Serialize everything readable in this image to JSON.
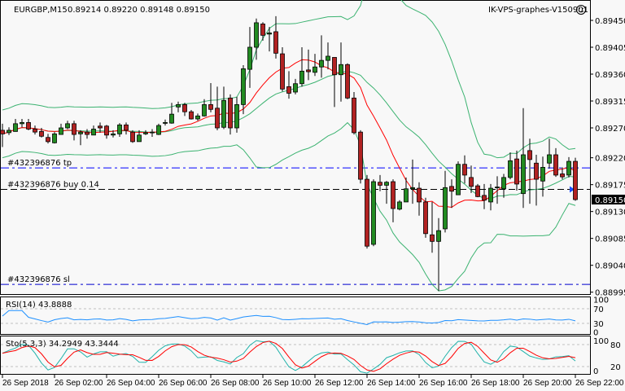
{
  "header": {
    "symbol": "EURGBP,M15",
    "ohlc": "0.89214 0.89220 0.89148 0.89150",
    "expert": "IK-VPS-graphes-V150901",
    "expert_icon": "smiley-face-icon"
  },
  "price_axis": {
    "labels": [
      "0.89450",
      "0.89405",
      "0.89360",
      "0.89315",
      "0.89270",
      "0.89220",
      "0.89175",
      "0.89130",
      "0.89085",
      "0.89040",
      "0.88995"
    ],
    "current_price": "0.89150"
  },
  "orders": {
    "tp": {
      "label": "#432396876 tp",
      "price": 0.89203
    },
    "buy": {
      "label": "#432396876 buy 0.14",
      "price": 0.89167
    },
    "sl": {
      "label": "#432396876 sl",
      "price": 0.89008
    }
  },
  "rsi": {
    "title": "RSI(14) 43.8888",
    "levels": [
      "100",
      "70",
      "30",
      "0"
    ]
  },
  "stoch": {
    "title": "Sto(5,3,3) 34.2949 43.3444",
    "levels": [
      "100",
      "80",
      "20",
      "0"
    ]
  },
  "time_axis": [
    "26 Sep 2018",
    "26 Sep 02:00",
    "26 Sep 04:00",
    "26 Sep 06:00",
    "26 Sep 08:00",
    "26 Sep 10:00",
    "26 Sep 12:00",
    "26 Sep 14:00",
    "26 Sep 16:00",
    "26 Sep 18:00",
    "26 Sep 20:00",
    "26 Sep 22:00"
  ],
  "colors": {
    "bull": "#228b22",
    "bear": "#b22222",
    "bands": "#3cb371",
    "ma": "#ff0000",
    "rsi": "#1e90ff",
    "stoch_main": "#20b2aa",
    "stoch_signal": "#ff0000",
    "tp_line": "#0000ff",
    "sl_line": "#0000cd",
    "buy_line": "#000000"
  },
  "chart_data": {
    "type": "candlestick",
    "symbol": "EURGBP",
    "timeframe": "M15",
    "ylim": [
      0.88995,
      0.8945
    ],
    "candles_ohlc": [
      [
        0.89266,
        0.89277,
        0.89238,
        0.8926
      ],
      [
        0.89262,
        0.89271,
        0.89258,
        0.89266
      ],
      [
        0.89264,
        0.89285,
        0.89264,
        0.89277
      ],
      [
        0.89277,
        0.89285,
        0.89271,
        0.89279
      ],
      [
        0.89279,
        0.89285,
        0.89266,
        0.89268
      ],
      [
        0.89268,
        0.89274,
        0.89259,
        0.89263
      ],
      [
        0.89264,
        0.8927,
        0.89254,
        0.89256
      ],
      [
        0.89254,
        0.8926,
        0.89244,
        0.89247
      ],
      [
        0.89245,
        0.89263,
        0.89244,
        0.8926
      ],
      [
        0.89259,
        0.89277,
        0.89259,
        0.8927
      ],
      [
        0.8927,
        0.89282,
        0.89268,
        0.89277
      ],
      [
        0.89277,
        0.89282,
        0.89249,
        0.89259
      ],
      [
        0.8926,
        0.89266,
        0.89241,
        0.89263
      ],
      [
        0.89263,
        0.89268,
        0.89252,
        0.89259
      ],
      [
        0.89258,
        0.89274,
        0.89258,
        0.89268
      ],
      [
        0.89273,
        0.89279,
        0.89262,
        0.8927
      ],
      [
        0.89273,
        0.89275,
        0.89252,
        0.89258
      ],
      [
        0.89258,
        0.89266,
        0.89254,
        0.8926
      ],
      [
        0.8926,
        0.89278,
        0.89255,
        0.89275
      ],
      [
        0.89275,
        0.89279,
        0.89259,
        0.89266
      ],
      [
        0.89263,
        0.89266,
        0.89245,
        0.89247
      ],
      [
        0.89247,
        0.89266,
        0.89247,
        0.89258
      ],
      [
        0.8926,
        0.89266,
        0.89258,
        0.89262
      ],
      [
        0.89262,
        0.89268,
        0.89255,
        0.89263
      ],
      [
        0.89259,
        0.89277,
        0.89258,
        0.89274
      ],
      [
        0.89278,
        0.89284,
        0.89274,
        0.89279
      ],
      [
        0.89278,
        0.89312,
        0.89277,
        0.89293
      ],
      [
        0.89305,
        0.89314,
        0.89296,
        0.89309
      ],
      [
        0.89309,
        0.89312,
        0.8929,
        0.89297
      ],
      [
        0.89297,
        0.893,
        0.89284,
        0.89285
      ],
      [
        0.89285,
        0.89294,
        0.89282,
        0.8929
      ],
      [
        0.8929,
        0.89318,
        0.89289,
        0.89309
      ],
      [
        0.89309,
        0.89345,
        0.89296,
        0.89301
      ],
      [
        0.89303,
        0.89339,
        0.89266,
        0.8927
      ],
      [
        0.89271,
        0.89339,
        0.89268,
        0.89316
      ],
      [
        0.8932,
        0.89326,
        0.89259,
        0.8927
      ],
      [
        0.8927,
        0.89322,
        0.89262,
        0.89309
      ],
      [
        0.89309,
        0.89375,
        0.89293,
        0.89369
      ],
      [
        0.89368,
        0.89439,
        0.89337,
        0.89405
      ],
      [
        0.89405,
        0.89453,
        0.89384,
        0.89446
      ],
      [
        0.89444,
        0.89447,
        0.89416,
        0.89425
      ],
      [
        0.89427,
        0.89439,
        0.89398,
        0.89429
      ],
      [
        0.89431,
        0.89457,
        0.89386,
        0.89395
      ],
      [
        0.89394,
        0.89405,
        0.89331,
        0.89335
      ],
      [
        0.89339,
        0.89365,
        0.89319,
        0.89328
      ],
      [
        0.8933,
        0.89352,
        0.89326,
        0.89344
      ],
      [
        0.89344,
        0.89405,
        0.89339,
        0.89365
      ],
      [
        0.89367,
        0.89401,
        0.8935,
        0.89364
      ],
      [
        0.89363,
        0.89394,
        0.89357,
        0.89372
      ],
      [
        0.89372,
        0.89425,
        0.89354,
        0.89383
      ],
      [
        0.89383,
        0.89413,
        0.89368,
        0.8939
      ],
      [
        0.89388,
        0.89388,
        0.89305,
        0.89359
      ],
      [
        0.89359,
        0.89413,
        0.89314,
        0.89376
      ],
      [
        0.89376,
        0.89378,
        0.89318,
        0.8932
      ],
      [
        0.8932,
        0.8933,
        0.89259,
        0.89262
      ],
      [
        0.89263,
        0.89266,
        0.89177,
        0.89184
      ],
      [
        0.89184,
        0.89191,
        0.89068,
        0.89072
      ],
      [
        0.89075,
        0.89184,
        0.89072,
        0.8918
      ],
      [
        0.89179,
        0.89191,
        0.89164,
        0.89174
      ],
      [
        0.89174,
        0.89181,
        0.89143,
        0.89179
      ],
      [
        0.8918,
        0.89184,
        0.89112,
        0.89135
      ],
      [
        0.89134,
        0.89149,
        0.89132,
        0.89146
      ],
      [
        0.89146,
        0.89187,
        0.89146,
        0.89168
      ],
      [
        0.89168,
        0.89217,
        0.89143,
        0.8917
      ],
      [
        0.89169,
        0.89179,
        0.89123,
        0.89146
      ],
      [
        0.89146,
        0.89153,
        0.89086,
        0.89093
      ],
      [
        0.89091,
        0.89146,
        0.89061,
        0.8908
      ],
      [
        0.8908,
        0.89119,
        0.88997,
        0.89098
      ],
      [
        0.89101,
        0.89198,
        0.89095,
        0.8917
      ],
      [
        0.89172,
        0.89184,
        0.89136,
        0.89164
      ],
      [
        0.89158,
        0.89214,
        0.89158,
        0.89209
      ],
      [
        0.89209,
        0.89224,
        0.89177,
        0.89191
      ],
      [
        0.89187,
        0.89207,
        0.89161,
        0.89172
      ],
      [
        0.89173,
        0.89176,
        0.89154,
        0.89155
      ],
      [
        0.89157,
        0.89176,
        0.89134,
        0.89149
      ],
      [
        0.89146,
        0.89176,
        0.89132,
        0.89169
      ],
      [
        0.8917,
        0.89189,
        0.89143,
        0.89171
      ],
      [
        0.89168,
        0.89193,
        0.89153,
        0.89187
      ],
      [
        0.89187,
        0.89229,
        0.89184,
        0.89215
      ],
      [
        0.89218,
        0.89232,
        0.89165,
        0.89176
      ],
      [
        0.8916,
        0.89303,
        0.89136,
        0.89225
      ],
      [
        0.89232,
        0.89252,
        0.89143,
        0.89217
      ],
      [
        0.89211,
        0.89225,
        0.8914,
        0.89184
      ],
      [
        0.89181,
        0.89222,
        0.89155,
        0.89204
      ],
      [
        0.89211,
        0.89252,
        0.89202,
        0.89225
      ],
      [
        0.89225,
        0.89236,
        0.89188,
        0.89191
      ],
      [
        0.89193,
        0.89204,
        0.89184,
        0.89188
      ],
      [
        0.89191,
        0.89221,
        0.89187,
        0.89214
      ],
      [
        0.89214,
        0.8922,
        0.89148,
        0.8915
      ]
    ],
    "indicators": [
      "Bollinger Bands",
      "Moving Average",
      "RSI(14)",
      "Stochastic(5,3,3)"
    ]
  }
}
